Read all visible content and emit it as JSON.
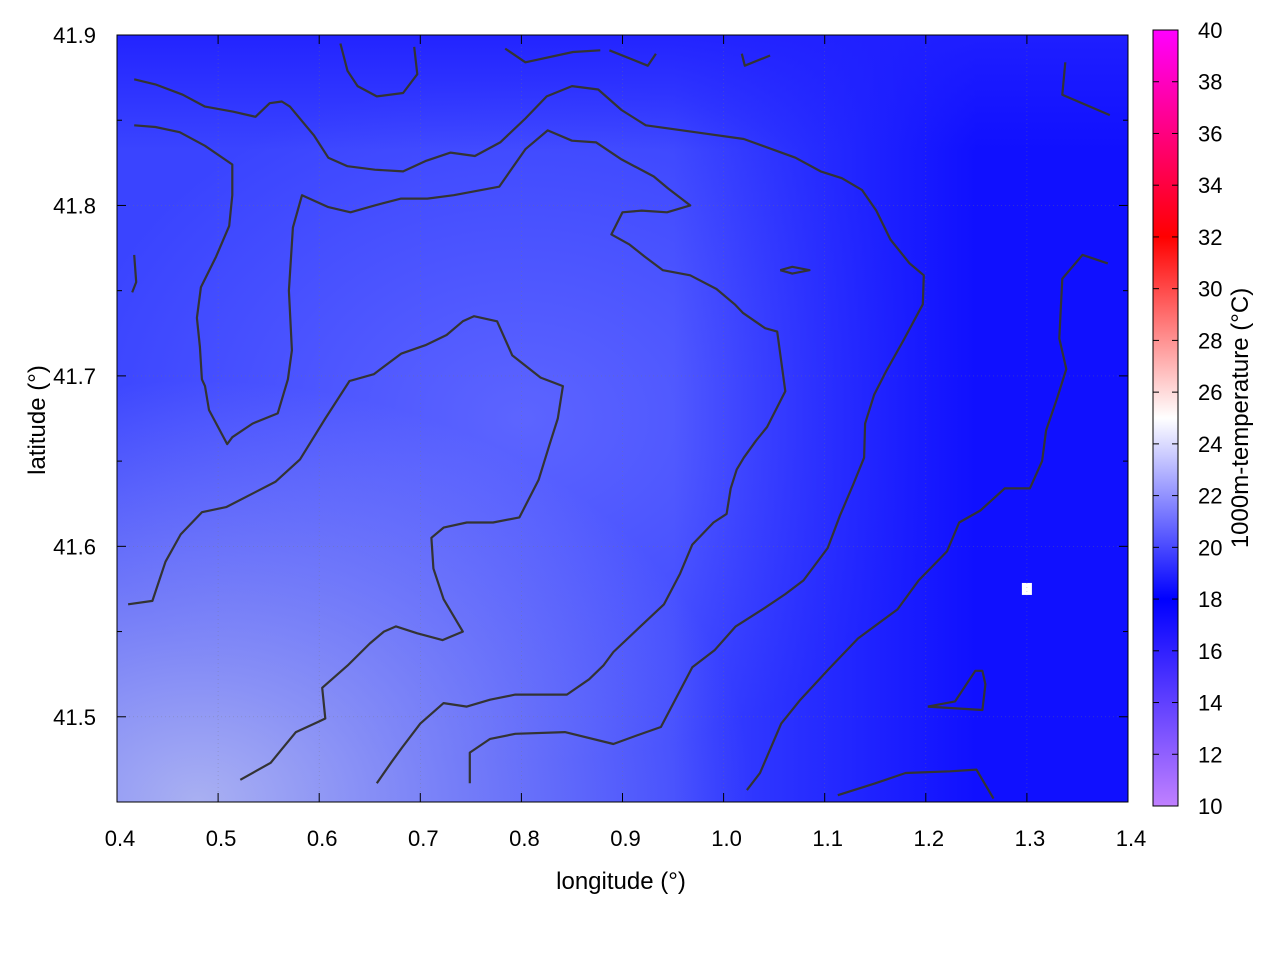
{
  "chart_data": {
    "type": "heatmap",
    "xlabel": "longitude (°)",
    "ylabel": "latitude (°)",
    "colorbar_label": "1000m-temperature (°C)",
    "xlim": [
      0.4,
      1.4
    ],
    "ylim": [
      41.45,
      41.9
    ],
    "x_ticks": [
      "0.4",
      "0.5",
      "0.6",
      "0.7",
      "0.8",
      "0.9",
      "1.0",
      "1.1",
      "1.2",
      "1.3",
      "1.4"
    ],
    "y_ticks": [
      "41.5",
      "41.6",
      "41.7",
      "41.8",
      "41.9"
    ],
    "colorbar_range": [
      10,
      40
    ],
    "colorbar_ticks": [
      "10",
      "12",
      "14",
      "16",
      "18",
      "20",
      "22",
      "24",
      "26",
      "28",
      "30",
      "32",
      "34",
      "36",
      "38",
      "40"
    ],
    "colormap": [
      {
        "value": 10,
        "color": "#c080ff"
      },
      {
        "value": 18,
        "color": "#0000ff"
      },
      {
        "value": 25,
        "color": "#ffffff"
      },
      {
        "value": 32,
        "color": "#ff0000"
      },
      {
        "value": 40,
        "color": "#ff00ff"
      }
    ],
    "grid": true,
    "field_description_colors": {
      "east": "#1414ff",
      "center": "#5a62ff",
      "southwest": "#a6aef4"
    },
    "contours": [
      [
        [
          0.417,
          41.874
        ],
        [
          0.438,
          41.871
        ],
        [
          0.465,
          41.865
        ],
        [
          0.487,
          41.858
        ],
        [
          0.515,
          41.855
        ],
        [
          0.537,
          41.852
        ],
        [
          0.551,
          41.86
        ],
        [
          0.563,
          41.861
        ],
        [
          0.571,
          41.858
        ],
        [
          0.595,
          41.841
        ],
        [
          0.609,
          41.828
        ],
        [
          0.628,
          41.823
        ],
        [
          0.655,
          41.821
        ],
        [
          0.683,
          41.82
        ],
        [
          0.705,
          41.826
        ],
        [
          0.73,
          41.831
        ],
        [
          0.754,
          41.829
        ],
        [
          0.779,
          41.837
        ],
        [
          0.804,
          41.851
        ],
        [
          0.825,
          41.864
        ],
        [
          0.85,
          41.87
        ],
        [
          0.876,
          41.868
        ],
        [
          0.899,
          41.856
        ],
        [
          0.923,
          41.847
        ],
        [
          0.972,
          41.843
        ],
        [
          1.02,
          41.839
        ],
        [
          1.071,
          41.828
        ],
        [
          1.096,
          41.82
        ],
        [
          1.117,
          41.816
        ],
        [
          1.137,
          41.809
        ],
        [
          1.151,
          41.797
        ],
        [
          1.165,
          41.78
        ],
        [
          1.184,
          41.766
        ],
        [
          1.198,
          41.759
        ],
        [
          1.197,
          41.742
        ],
        [
          1.178,
          41.721
        ],
        [
          1.161,
          41.703
        ],
        [
          1.149,
          41.689
        ],
        [
          1.14,
          41.672
        ],
        [
          1.139,
          41.652
        ],
        [
          1.128,
          41.636
        ],
        [
          1.115,
          41.618
        ],
        [
          1.103,
          41.599
        ],
        [
          1.079,
          41.58
        ],
        [
          1.061,
          41.572
        ],
        [
          1.041,
          41.564
        ],
        [
          1.012,
          41.553
        ],
        [
          0.991,
          41.539
        ],
        [
          0.969,
          41.529
        ],
        [
          0.938,
          41.494
        ],
        [
          0.914,
          41.489
        ],
        [
          0.891,
          41.484
        ],
        [
          0.843,
          41.491
        ],
        [
          0.794,
          41.49
        ],
        [
          0.769,
          41.487
        ],
        [
          0.749,
          41.479
        ],
        [
          0.749,
          41.461
        ]
      ],
      [
        [
          0.417,
          41.847
        ],
        [
          0.438,
          41.846
        ],
        [
          0.462,
          41.843
        ],
        [
          0.487,
          41.835
        ],
        [
          0.514,
          41.824
        ],
        [
          0.514,
          41.806
        ],
        [
          0.511,
          41.788
        ],
        [
          0.498,
          41.77
        ],
        [
          0.483,
          41.752
        ],
        [
          0.479,
          41.734
        ],
        [
          0.482,
          41.717
        ],
        [
          0.484,
          41.698
        ],
        [
          0.487,
          41.694
        ],
        [
          0.491,
          41.68
        ],
        [
          0.509,
          41.66
        ],
        [
          0.514,
          41.664
        ],
        [
          0.534,
          41.672
        ],
        [
          0.559,
          41.678
        ],
        [
          0.569,
          41.698
        ],
        [
          0.573,
          41.715
        ],
        [
          0.57,
          41.75
        ],
        [
          0.574,
          41.787
        ],
        [
          0.583,
          41.806
        ],
        [
          0.609,
          41.799
        ],
        [
          0.631,
          41.796
        ],
        [
          0.655,
          41.8
        ],
        [
          0.681,
          41.804
        ],
        [
          0.707,
          41.804
        ],
        [
          0.733,
          41.806
        ],
        [
          0.778,
          41.811
        ],
        [
          0.804,
          41.833
        ],
        [
          0.826,
          41.844
        ],
        [
          0.85,
          41.838
        ],
        [
          0.874,
          41.837
        ],
        [
          0.899,
          41.827
        ],
        [
          0.931,
          41.817
        ],
        [
          0.945,
          41.81
        ],
        [
          0.967,
          41.8
        ],
        [
          0.944,
          41.796
        ],
        [
          0.919,
          41.797
        ],
        [
          0.9,
          41.796
        ],
        [
          0.889,
          41.783
        ],
        [
          0.907,
          41.777
        ],
        [
          0.922,
          41.77
        ],
        [
          0.94,
          41.762
        ],
        [
          0.967,
          41.759
        ],
        [
          0.993,
          41.751
        ],
        [
          1.011,
          41.742
        ],
        [
          1.019,
          41.737
        ],
        [
          1.041,
          41.728
        ],
        [
          1.053,
          41.726
        ],
        [
          1.061,
          41.691
        ],
        [
          1.043,
          41.67
        ],
        [
          1.032,
          41.662
        ],
        [
          1.02,
          41.652
        ],
        [
          1.013,
          41.645
        ],
        [
          1.007,
          41.634
        ],
        [
          1.003,
          41.619
        ],
        [
          0.99,
          41.614
        ],
        [
          0.969,
          41.601
        ],
        [
          0.957,
          41.584
        ],
        [
          0.941,
          41.566
        ],
        [
          0.916,
          41.552
        ],
        [
          0.891,
          41.538
        ],
        [
          0.881,
          41.53
        ],
        [
          0.867,
          41.522
        ],
        [
          0.845,
          41.513
        ],
        [
          0.794,
          41.513
        ],
        [
          0.769,
          41.51
        ],
        [
          0.746,
          41.506
        ],
        [
          0.723,
          41.508
        ],
        [
          0.7,
          41.496
        ],
        [
          0.682,
          41.482
        ],
        [
          0.671,
          41.473
        ],
        [
          0.657,
          41.461
        ]
      ],
      [
        [
          0.411,
          41.566
        ],
        [
          0.435,
          41.568
        ],
        [
          0.448,
          41.591
        ],
        [
          0.463,
          41.607
        ],
        [
          0.484,
          41.62
        ],
        [
          0.508,
          41.623
        ],
        [
          0.531,
          41.63
        ],
        [
          0.557,
          41.638
        ],
        [
          0.581,
          41.651
        ],
        [
          0.606,
          41.675
        ],
        [
          0.63,
          41.697
        ],
        [
          0.654,
          41.701
        ],
        [
          0.681,
          41.713
        ],
        [
          0.705,
          41.718
        ],
        [
          0.726,
          41.724
        ],
        [
          0.742,
          41.732
        ],
        [
          0.753,
          41.735
        ],
        [
          0.776,
          41.732
        ],
        [
          0.791,
          41.712
        ],
        [
          0.819,
          41.699
        ],
        [
          0.841,
          41.694
        ],
        [
          0.836,
          41.675
        ],
        [
          0.828,
          41.66
        ],
        [
          0.817,
          41.639
        ],
        [
          0.798,
          41.617
        ],
        [
          0.772,
          41.614
        ],
        [
          0.746,
          41.614
        ],
        [
          0.723,
          41.611
        ],
        [
          0.711,
          41.605
        ],
        [
          0.713,
          41.587
        ],
        [
          0.723,
          41.569
        ],
        [
          0.742,
          41.55
        ],
        [
          0.722,
          41.545
        ],
        [
          0.697,
          41.549
        ],
        [
          0.676,
          41.553
        ],
        [
          0.664,
          41.55
        ],
        [
          0.65,
          41.543
        ],
        [
          0.628,
          41.53
        ],
        [
          0.603,
          41.517
        ],
        [
          0.606,
          41.499
        ],
        [
          0.599,
          41.497
        ],
        [
          0.577,
          41.491
        ],
        [
          0.563,
          41.481
        ],
        [
          0.552,
          41.473
        ],
        [
          0.522,
          41.463
        ]
      ],
      [
        [
          1.023,
          41.457
        ],
        [
          1.036,
          41.467
        ],
        [
          1.057,
          41.496
        ],
        [
          1.076,
          41.51
        ],
        [
          1.104,
          41.528
        ],
        [
          1.133,
          41.546
        ],
        [
          1.172,
          41.563
        ],
        [
          1.193,
          41.58
        ],
        [
          1.221,
          41.597
        ],
        [
          1.233,
          41.614
        ],
        [
          1.254,
          41.621
        ],
        [
          1.278,
          41.634
        ],
        [
          1.303,
          41.634
        ],
        [
          1.315,
          41.65
        ],
        [
          1.319,
          41.668
        ],
        [
          1.33,
          41.687
        ],
        [
          1.339,
          41.704
        ],
        [
          1.332,
          41.722
        ],
        [
          1.335,
          41.757
        ],
        [
          1.355,
          41.771
        ],
        [
          1.38,
          41.766
        ]
      ],
      [
        [
          0.417,
          41.771
        ],
        [
          0.419,
          41.755
        ],
        [
          0.415,
          41.749
        ]
      ],
      [
        [
          0.621,
          41.895
        ],
        [
          0.628,
          41.879
        ],
        [
          0.638,
          41.87
        ],
        [
          0.657,
          41.864
        ],
        [
          0.683,
          41.866
        ],
        [
          0.697,
          41.877
        ],
        [
          0.694,
          41.893
        ]
      ],
      [
        [
          0.784,
          41.892
        ],
        [
          0.804,
          41.884
        ],
        [
          0.851,
          41.89
        ],
        [
          0.878,
          41.891
        ]
      ],
      [
        [
          0.887,
          41.891
        ],
        [
          0.925,
          41.882
        ],
        [
          0.933,
          41.889
        ]
      ],
      [
        [
          1.018,
          41.889
        ],
        [
          1.021,
          41.882
        ],
        [
          1.046,
          41.888
        ]
      ],
      [
        [
          1.338,
          41.884
        ],
        [
          1.335,
          41.865
        ],
        [
          1.382,
          41.853
        ]
      ],
      [
        [
          1.056,
          41.762
        ],
        [
          1.068,
          41.764
        ],
        [
          1.085,
          41.762
        ],
        [
          1.068,
          41.76
        ],
        [
          1.056,
          41.762
        ]
      ],
      [
        [
          1.202,
          41.506
        ],
        [
          1.229,
          41.509
        ],
        [
          1.249,
          41.527
        ],
        [
          1.256,
          41.527
        ],
        [
          1.259,
          41.519
        ],
        [
          1.256,
          41.504
        ],
        [
          1.202,
          41.506
        ]
      ],
      [
        [
          1.113,
          41.454
        ],
        [
          1.15,
          41.461
        ],
        [
          1.18,
          41.467
        ],
        [
          1.224,
          41.468
        ],
        [
          1.25,
          41.469
        ],
        [
          1.267,
          41.452
        ]
      ]
    ],
    "missing_points": [
      [
        1.3,
        41.575
      ]
    ]
  }
}
